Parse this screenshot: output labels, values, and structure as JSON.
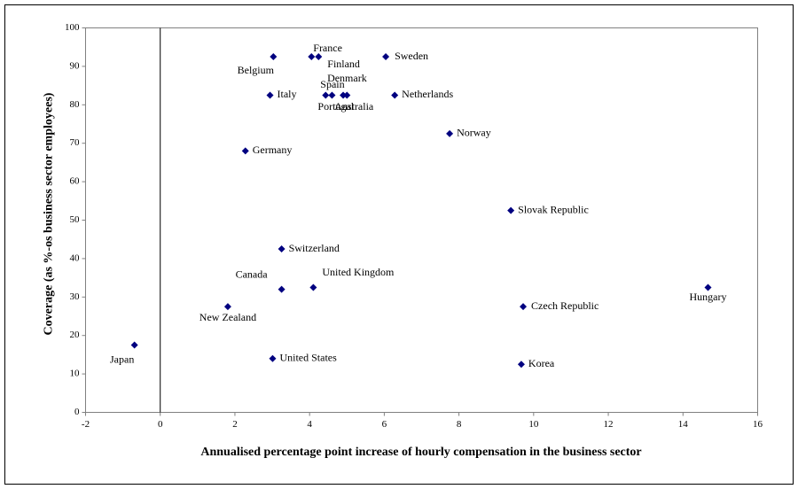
{
  "chart_data": {
    "type": "scatter",
    "x_label": "Annualised percentage point increase of hourly compensation in the business sector",
    "y_label": "Coverage (as %-os business sector employees)",
    "color": "#000080",
    "xlim": [
      -2,
      16
    ],
    "xticks": [
      -2,
      0,
      2,
      4,
      6,
      8,
      10,
      12,
      14,
      16
    ],
    "ylim": [
      0,
      100
    ],
    "yticks": [
      0,
      10,
      20,
      30,
      40,
      50,
      60,
      70,
      80,
      90,
      100
    ],
    "labels": [
      "Belgium",
      "France",
      "Finland",
      "Sweden",
      "Italy",
      "Spain",
      "Portugal",
      "Denmark",
      "Australia",
      "Netherlands",
      "Norway",
      "Germany",
      "Slovak Republic",
      "Switzerland",
      "Canada",
      "United Kingdom",
      "Hungary",
      "New Zealand",
      "Czech Republic",
      "Japan",
      "United States",
      "Korea"
    ],
    "x": [
      3.03,
      4.05,
      4.24,
      6.04,
      2.94,
      4.43,
      4.6,
      4.9,
      5.0,
      6.28,
      7.75,
      2.28,
      9.39,
      3.25,
      3.25,
      4.1,
      14.67,
      1.81,
      9.72,
      -0.69,
      3.01,
      9.67
    ],
    "values": [
      92.5,
      92.5,
      92.5,
      92.5,
      82.5,
      82.5,
      82.5,
      82.5,
      82.5,
      82.5,
      72.5,
      68,
      52.5,
      42.5,
      32,
      32.5,
      32.5,
      27.5,
      27.5,
      17.5,
      14,
      12.5
    ]
  }
}
